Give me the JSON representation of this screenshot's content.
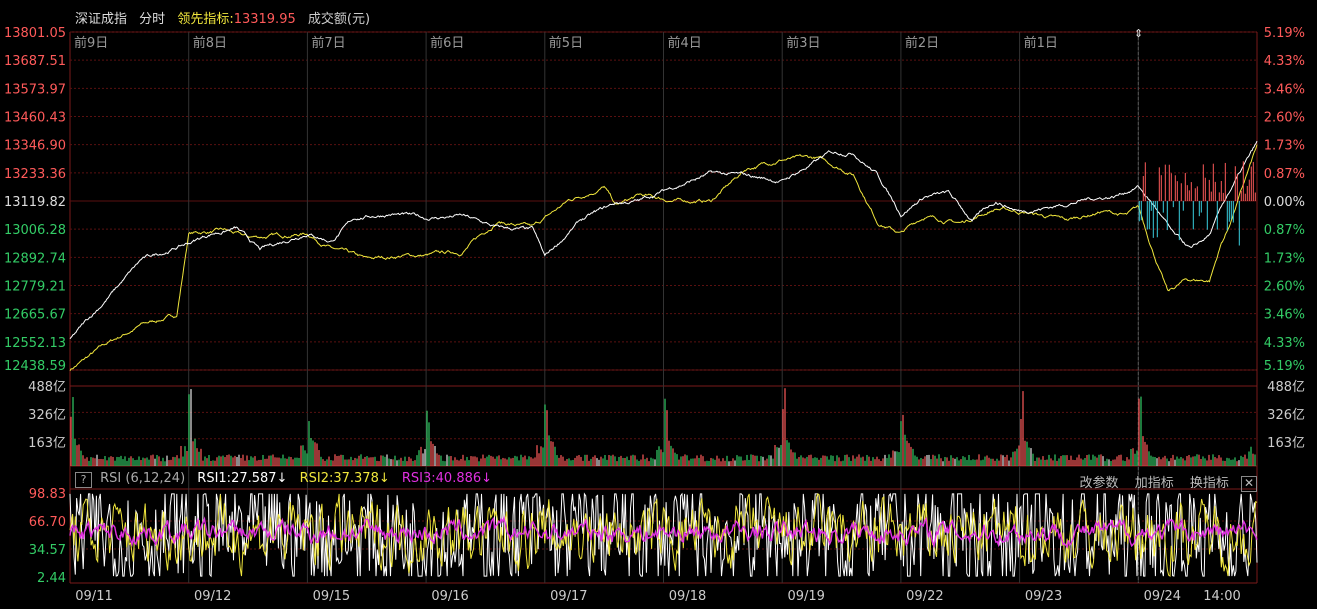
{
  "header": {
    "name": "深证成指",
    "mode": "分时",
    "lead_label": "领先指标:",
    "lead_value": "13319.95",
    "volume_label": "成交额(元)"
  },
  "colors": {
    "price": "#ffffff",
    "lead": "#f0e63c",
    "up": "#ff5a5a",
    "down": "#33cc66",
    "flat": "#e6e6e6",
    "cyan": "#3ad0e0",
    "grid": "#5a1010",
    "rsi1": "#ffffff",
    "rsi2": "#f0e63c",
    "rsi3": "#e030e0"
  },
  "rsi_toolbar": {
    "help": "?",
    "label": "RSI (6,12,24)",
    "rsi1": "RSI1:27.587↓",
    "rsi2": "RSI2:37.378↓",
    "rsi3": "RSI3:40.886↓",
    "btn_params": "改参数",
    "btn_add": "加指标",
    "btn_switch": "换指标",
    "btn_close": "✕"
  },
  "chart_data": {
    "type": "line",
    "session_labels": [
      "前9日",
      "前8日",
      "前7日",
      "前6日",
      "前5日",
      "前4日",
      "前3日",
      "前2日",
      "前1日"
    ],
    "x_dates": [
      "09/11",
      "09/12",
      "09/15",
      "09/16",
      "09/17",
      "09/18",
      "09/19",
      "09/22",
      "09/23",
      "09/24",
      "14:00"
    ],
    "price_axis": [
      "13801.05",
      "13687.51",
      "13573.97",
      "13460.43",
      "13346.90",
      "13233.36",
      "13119.82",
      "13006.28",
      "12892.74",
      "12779.21",
      "12665.67",
      "12552.13",
      "12438.59"
    ],
    "pct_axis": [
      "5.19%",
      "4.33%",
      "3.46%",
      "2.60%",
      "1.73%",
      "0.87%",
      "0.00%",
      "0.87%",
      "1.73%",
      "2.60%",
      "3.46%",
      "4.33%",
      "5.19%"
    ],
    "ylim": [
      12438.59,
      13801.05
    ],
    "prev_close": 13119.82,
    "volume_axis": [
      "488亿",
      "326亿",
      "163亿"
    ],
    "volume_max": 488,
    "rsi_axis": [
      "98.83",
      "66.70",
      "34.57",
      "2.44"
    ],
    "rsi_ylim": [
      2.44,
      98.83
    ],
    "series": [
      {
        "name": "price",
        "keyframes": [
          [
            0,
            12560
          ],
          [
            0.03,
            12720
          ],
          [
            0.06,
            12880
          ],
          [
            0.1,
            12950
          ],
          [
            0.12,
            12990
          ],
          [
            0.14,
            13010
          ],
          [
            0.16,
            12920
          ],
          [
            0.2,
            12995
          ],
          [
            0.22,
            12960
          ],
          [
            0.24,
            13050
          ],
          [
            0.27,
            13070
          ],
          [
            0.3,
            13050
          ],
          [
            0.33,
            13060
          ],
          [
            0.36,
            13010
          ],
          [
            0.39,
            13000
          ],
          [
            0.4,
            12890
          ],
          [
            0.43,
            13040
          ],
          [
            0.46,
            13110
          ],
          [
            0.48,
            13120
          ],
          [
            0.51,
            13180
          ],
          [
            0.54,
            13230
          ],
          [
            0.57,
            13220
          ],
          [
            0.6,
            13200
          ],
          [
            0.64,
            13310
          ],
          [
            0.66,
            13320
          ],
          [
            0.68,
            13230
          ],
          [
            0.7,
            13070
          ],
          [
            0.72,
            13140
          ],
          [
            0.74,
            13150
          ],
          [
            0.76,
            13040
          ],
          [
            0.78,
            13120
          ],
          [
            0.8,
            13080
          ],
          [
            0.83,
            13100
          ],
          [
            0.86,
            13130
          ],
          [
            0.88,
            13140
          ],
          [
            0.9,
            13180
          ],
          [
            0.915,
            13090
          ],
          [
            0.93,
            12980
          ],
          [
            0.945,
            12920
          ],
          [
            0.96,
            12980
          ],
          [
            0.975,
            13140
          ],
          [
            1,
            13350
          ]
        ]
      },
      {
        "name": "lead",
        "keyframes": [
          [
            0,
            12440
          ],
          [
            0.03,
            12540
          ],
          [
            0.06,
            12620
          ],
          [
            0.09,
            12660
          ],
          [
            0.1,
            12990
          ],
          [
            0.13,
            13000
          ],
          [
            0.15,
            12970
          ],
          [
            0.2,
            12990
          ],
          [
            0.22,
            12930
          ],
          [
            0.25,
            12880
          ],
          [
            0.28,
            12900
          ],
          [
            0.3,
            12900
          ],
          [
            0.33,
            12915
          ],
          [
            0.36,
            13040
          ],
          [
            0.39,
            13010
          ],
          [
            0.42,
            13120
          ],
          [
            0.45,
            13180
          ],
          [
            0.46,
            13100
          ],
          [
            0.48,
            13140
          ],
          [
            0.51,
            13120
          ],
          [
            0.54,
            13120
          ],
          [
            0.57,
            13250
          ],
          [
            0.6,
            13290
          ],
          [
            0.63,
            13290
          ],
          [
            0.66,
            13230
          ],
          [
            0.68,
            13040
          ],
          [
            0.7,
            12990
          ],
          [
            0.72,
            13060
          ],
          [
            0.75,
            13030
          ],
          [
            0.78,
            13090
          ],
          [
            0.81,
            13070
          ],
          [
            0.84,
            13040
          ],
          [
            0.87,
            13080
          ],
          [
            0.89,
            13060
          ],
          [
            0.9,
            13090
          ],
          [
            0.91,
            12950
          ],
          [
            0.925,
            12750
          ],
          [
            0.94,
            12800
          ],
          [
            0.96,
            12800
          ],
          [
            0.97,
            12950
          ],
          [
            0.975,
            13000
          ],
          [
            1,
            13340
          ]
        ]
      },
      {
        "name": "RSI1"
      },
      {
        "name": "RSI2"
      },
      {
        "name": "RSI3"
      }
    ]
  }
}
